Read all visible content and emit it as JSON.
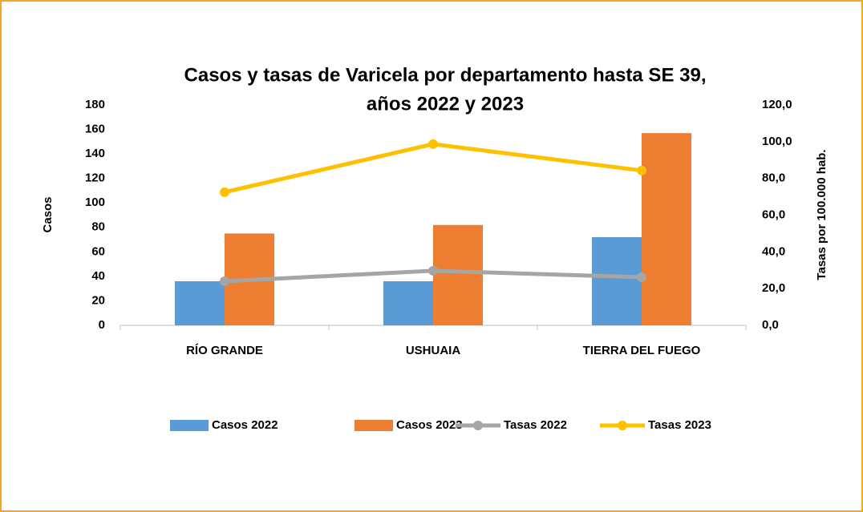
{
  "chart_data": {
    "type": "bar",
    "title": [
      "Casos y tasas de Varicela por departamento hasta SE 39,",
      "años 2022 y 2023"
    ],
    "ylabel": "Casos",
    "y2label": "Tasas por 100.000 hab.",
    "categories": [
      "RÍO GRANDE",
      "USHUAIA",
      "TIERRA DEL FUEGO"
    ],
    "series": [
      {
        "name": "Casos 2022",
        "type": "bar",
        "color": "#5b9bd5",
        "values": [
          36,
          36,
          72
        ]
      },
      {
        "name": "Casos 2023",
        "type": "bar",
        "color": "#ed7d31",
        "values": [
          75,
          82,
          157
        ]
      },
      {
        "name": "Tasas 2022",
        "type": "line",
        "axis": "y2",
        "color": "#a5a5a5",
        "values": [
          24.0,
          29.7,
          26.2
        ]
      },
      {
        "name": "Tasas 2023",
        "type": "line",
        "axis": "y2",
        "color": "#ffc000",
        "values": [
          72.5,
          98.7,
          84.3
        ]
      }
    ],
    "ylim": [
      0,
      180
    ],
    "yticks": [
      0,
      20,
      40,
      60,
      80,
      100,
      120,
      140,
      160,
      180
    ],
    "y2lim": [
      0,
      120
    ],
    "y2ticks": [
      {
        "value": 0,
        "label": "0,0"
      },
      {
        "value": 20,
        "label": "20,0"
      },
      {
        "value": 40,
        "label": "40,0"
      },
      {
        "value": 60,
        "label": "60,0"
      },
      {
        "value": 80,
        "label": "80,0"
      },
      {
        "value": 100,
        "label": "100,0"
      },
      {
        "value": 120,
        "label": "120,0"
      }
    ],
    "legend": "bottom",
    "grid": false
  }
}
